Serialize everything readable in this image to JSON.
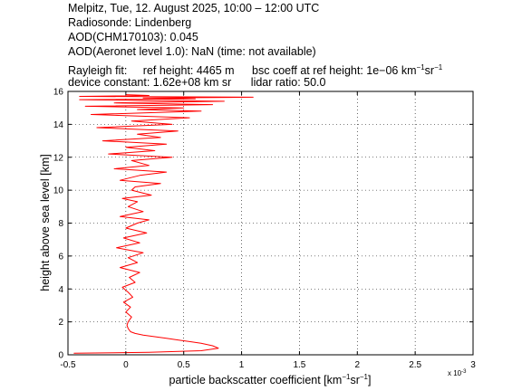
{
  "header": {
    "line1": "Melpitz, Tue, 12. August 2025, 10:00 – 12:00 UTC",
    "line2": "Radiosonde: Lindenberg",
    "line3": "AOD(CHM170103): 0.045",
    "line4": "AOD(Aeronet level 1.0): NaN   (time: not available)",
    "rayleigh_label": "Rayleigh fit:",
    "ref_height": "ref height: 4465 m",
    "bsc_coeff_prefix": "bsc coeff at ref height: 1e−06 km",
    "device_constant": "device constant: 1.62e+08 km sr",
    "lidar_ratio": "lidar ratio: 50.0"
  },
  "units": {
    "sup_minus1": "−1"
  },
  "chart_data": {
    "type": "line",
    "xlabel_prefix": "particle backscatter coefficient [km",
    "xlabel_mid": "sr",
    "xlabel_suffix": "]",
    "ylabel": "height above sea level [km]",
    "x_multiplier": "x 10",
    "x_multiplier_exp": "-3",
    "xlim": [
      -0.5,
      3
    ],
    "ylim": [
      0,
      16
    ],
    "xticks": [
      -0.5,
      0,
      0.5,
      1,
      1.5,
      2,
      2.5,
      3
    ],
    "xtick_labels": [
      "-0.5",
      "0",
      "0.5",
      "1",
      "1.5",
      "2",
      "2.5",
      "3"
    ],
    "yticks": [
      0,
      2,
      4,
      6,
      8,
      10,
      12,
      14,
      16
    ],
    "ytick_labels": [
      "0",
      "2",
      "4",
      "6",
      "8",
      "10",
      "12",
      "14",
      "16"
    ],
    "grid": true,
    "series": [
      {
        "color": "#ff0000",
        "x": [
          -0.45,
          0.2,
          0.65,
          0.8,
          0.75,
          0.65,
          0.55,
          0.45,
          0.35,
          0.25,
          0.15,
          0.08,
          0.04,
          0.02,
          0.01,
          0.02,
          0.05,
          0.0,
          0.04,
          -0.02,
          0.06,
          0.02,
          -0.03,
          0.08,
          0.03,
          0.12,
          -0.05,
          0.1,
          0.02,
          0.15,
          -0.08,
          0.12,
          -0.02,
          0.18,
          0.0,
          0.1,
          0.2,
          -0.05,
          0.15,
          0.02,
          0.1,
          -0.03,
          0.22,
          0.05,
          0.08,
          0.3,
          -0.05,
          0.12,
          0.35,
          -0.1,
          0.2,
          0.05,
          0.4,
          -0.15,
          0.25,
          0.0,
          0.35,
          -0.2,
          0.3,
          0.1,
          0.45,
          -0.25,
          0.4,
          0.05,
          0.55,
          -0.3,
          0.65,
          0.1,
          0.5,
          -0.35,
          0.75,
          -0.1,
          0.85,
          0.2,
          -0.4,
          0.6,
          0.15,
          1.1,
          -0.4,
          0.2,
          0.0
        ],
        "y": [
          0.1,
          0.15,
          0.25,
          0.4,
          0.55,
          0.7,
          0.8,
          0.9,
          1.0,
          1.1,
          1.2,
          1.3,
          1.4,
          1.6,
          1.8,
          2.0,
          2.3,
          2.6,
          2.9,
          3.2,
          3.5,
          3.8,
          4.1,
          4.4,
          4.7,
          5.0,
          5.3,
          5.6,
          5.9,
          6.2,
          6.5,
          6.8,
          7.1,
          7.4,
          7.7,
          8.0,
          8.2,
          8.4,
          8.7,
          9.0,
          9.3,
          9.5,
          9.7,
          10.0,
          10.2,
          10.4,
          10.6,
          10.9,
          11.1,
          11.3,
          11.5,
          11.8,
          12.0,
          12.2,
          12.4,
          12.6,
          12.8,
          13.0,
          13.2,
          13.4,
          13.6,
          13.8,
          14.0,
          14.2,
          14.4,
          14.6,
          14.8,
          14.9,
          15.0,
          15.1,
          15.2,
          15.3,
          15.4,
          15.45,
          15.5,
          15.55,
          15.6,
          15.65,
          15.7,
          15.75,
          15.8
        ]
      }
    ]
  }
}
